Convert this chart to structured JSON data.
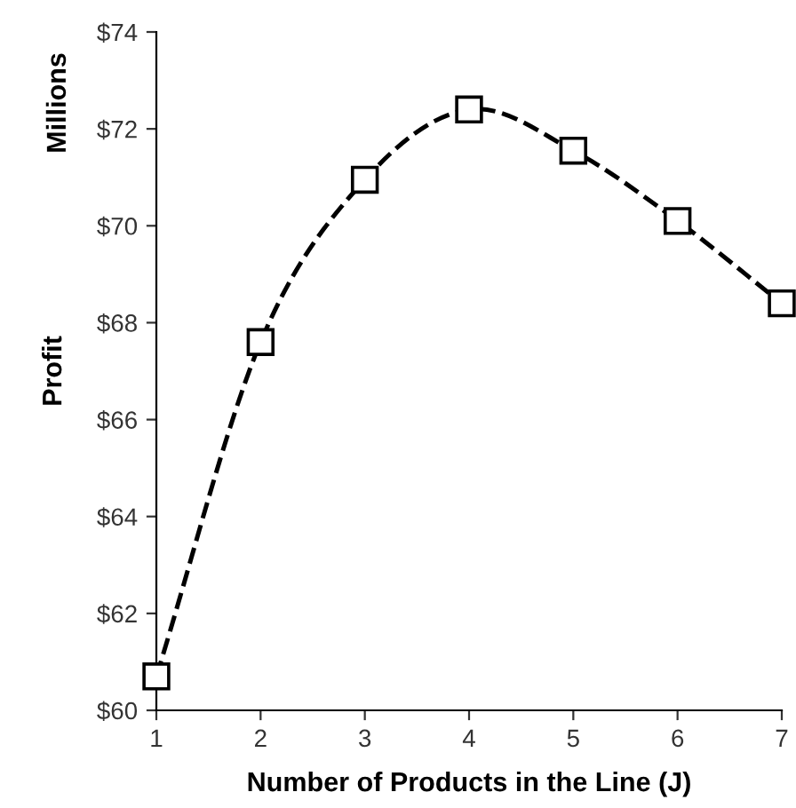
{
  "chart_data": {
    "type": "line",
    "xlabel": "Number of Products in the Line (J)",
    "ylabel": "Profit",
    "annotations": [
      "Millions"
    ],
    "x": [
      1,
      2,
      3,
      4,
      5,
      6,
      7
    ],
    "series": [
      {
        "color": "#000000",
        "values": [
          60.7,
          67.6,
          70.95,
          72.4,
          71.55,
          70.1,
          68.4
        ]
      }
    ],
    "xlim": [
      1,
      7
    ],
    "xticks": [
      1,
      2,
      3,
      4,
      5,
      6,
      7
    ],
    "ylim": [
      60,
      74
    ],
    "yticks": [
      {
        "value": 60,
        "label": "$60"
      },
      {
        "value": 62,
        "label": "$62"
      },
      {
        "value": 64,
        "label": "$64"
      },
      {
        "value": 66,
        "label": "$66"
      },
      {
        "value": 68,
        "label": "$68"
      },
      {
        "value": 70,
        "label": "$70"
      },
      {
        "value": 72,
        "label": "$72"
      },
      {
        "value": 74,
        "label": "$74"
      }
    ],
    "marker": "square",
    "line_style": "dashed",
    "grid": false,
    "legend": false
  }
}
